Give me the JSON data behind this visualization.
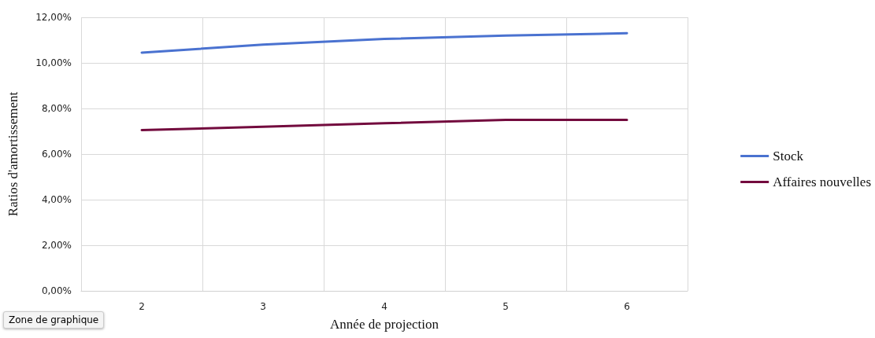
{
  "chart_data": {
    "type": "line",
    "xlabel": "Année de projection",
    "ylabel": "Ratios d'amortissement",
    "annotations": [
      "Zone de graphique"
    ],
    "categories": [
      "2",
      "3",
      "4",
      "5",
      "6"
    ],
    "series": [
      {
        "name": "Stock",
        "color": "#4a72d0",
        "values": [
          10.45,
          10.8,
          11.05,
          11.2,
          11.3
        ]
      },
      {
        "name": "Affaires nouvelles",
        "color": "#730b3e",
        "values": [
          7.05,
          7.2,
          7.35,
          7.5,
          7.5
        ]
      }
    ],
    "ylim": [
      0,
      12
    ],
    "yticks": [
      {
        "value": 0,
        "label": "0,00%"
      },
      {
        "value": 2,
        "label": "2,00%"
      },
      {
        "value": 4,
        "label": "4,00%"
      },
      {
        "value": 6,
        "label": "6,00%"
      },
      {
        "value": 8,
        "label": "8,00%"
      },
      {
        "value": 10,
        "label": "10,00%"
      },
      {
        "value": 12,
        "label": "12,00%"
      }
    ],
    "grid": true,
    "legend": "right",
    "marker": "none",
    "line_style": "solid"
  }
}
